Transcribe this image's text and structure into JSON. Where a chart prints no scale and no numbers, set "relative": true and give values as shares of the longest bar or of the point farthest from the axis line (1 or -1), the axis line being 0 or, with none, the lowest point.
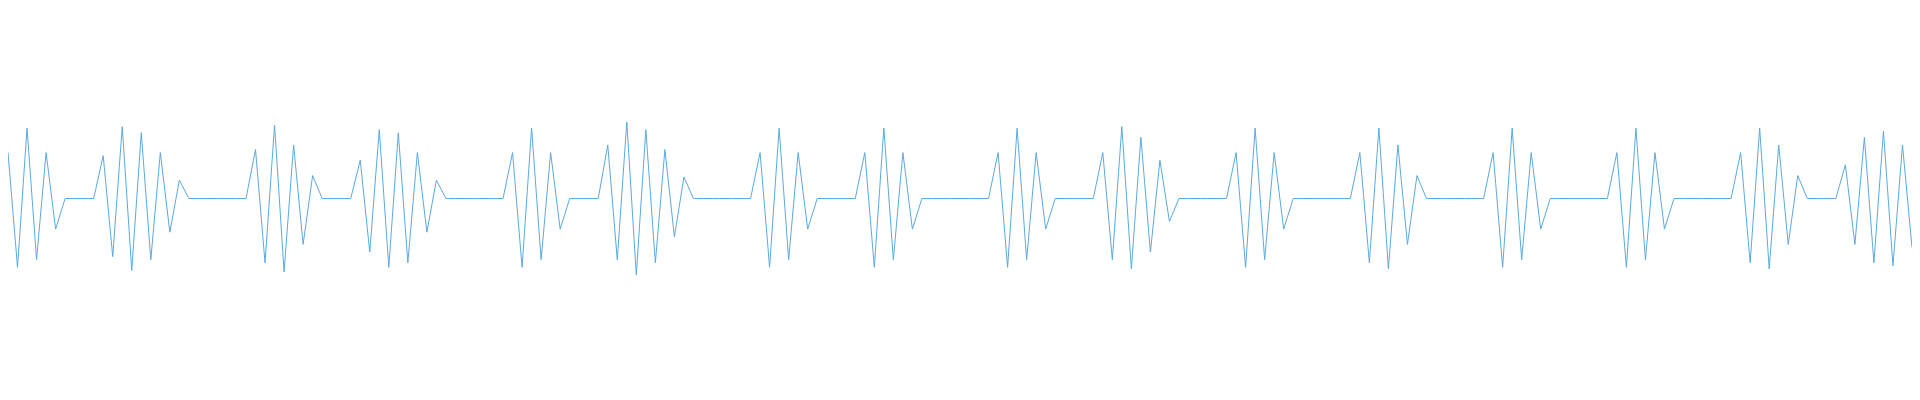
{
  "chart_data": {
    "type": "line",
    "relative": true,
    "grid": false,
    "categories": [
      null,
      null,
      null,
      null,
      null,
      null,
      null,
      null,
      null,
      null,
      null,
      null,
      null,
      null,
      null,
      null,
      null,
      null,
      null,
      null,
      null,
      null,
      null,
      null,
      null,
      null,
      null,
      null,
      null,
      null,
      null,
      null,
      null,
      null,
      null,
      null,
      null,
      null,
      null,
      null,
      null,
      null,
      null,
      null,
      null,
      null,
      null,
      null,
      null,
      null,
      null,
      null,
      null,
      null,
      null,
      null,
      null,
      null,
      null,
      null,
      null,
      null,
      null,
      null,
      null,
      null,
      null,
      null,
      null,
      null,
      null,
      null,
      null,
      null,
      null,
      null,
      null,
      null,
      null,
      null,
      null,
      null,
      null,
      null,
      null,
      null,
      null,
      null,
      null,
      null,
      null,
      null,
      null,
      null,
      null,
      null,
      null,
      null,
      null,
      null,
      null,
      null,
      null,
      null,
      null,
      null,
      null,
      null,
      null,
      null,
      null,
      null,
      null,
      null,
      null,
      null,
      null,
      null,
      null,
      null,
      null,
      null,
      null,
      null,
      null,
      null,
      null,
      null,
      null,
      null,
      null,
      null,
      null,
      null,
      null,
      null,
      null,
      null,
      null,
      null,
      null,
      null,
      null,
      null,
      null,
      null,
      null,
      null,
      null,
      null,
      null,
      null,
      null,
      null,
      null,
      null,
      null,
      null,
      null,
      null,
      null,
      null,
      null,
      null,
      null,
      null,
      null,
      null,
      null,
      null,
      null,
      null,
      null,
      null,
      null,
      null,
      null,
      null,
      null,
      null,
      null,
      null,
      null,
      null,
      null,
      null,
      null,
      null,
      null,
      null,
      null,
      null,
      null,
      null,
      null,
      null,
      null,
      null,
      null,
      null,
      null
    ],
    "series": [
      {
        "color": "#5aa9e0",
        "values": [
          0.8,
          0.05,
          0.96,
          0.1,
          0.8,
          0.3,
          0.5,
          0.5,
          0.5,
          0.5,
          0.78,
          0.12,
          0.97,
          0.03,
          0.93,
          0.1,
          0.8,
          0.28,
          0.62,
          0.5,
          0.5,
          0.5,
          0.5,
          0.5,
          0.5,
          0.5,
          0.82,
          0.08,
          0.98,
          0.02,
          0.85,
          0.2,
          0.65,
          0.5,
          0.5,
          0.5,
          0.5,
          0.75,
          0.15,
          0.95,
          0.05,
          0.93,
          0.08,
          0.8,
          0.28,
          0.62,
          0.5,
          0.5,
          0.5,
          0.5,
          0.5,
          0.5,
          0.5,
          0.8,
          0.05,
          0.96,
          0.1,
          0.8,
          0.3,
          0.5,
          0.5,
          0.5,
          0.5,
          0.85,
          0.1,
          1,
          0,
          0.95,
          0.08,
          0.82,
          0.25,
          0.64,
          0.5,
          0.5,
          0.5,
          0.5,
          0.5,
          0.5,
          0.5,
          0.8,
          0.05,
          0.96,
          0.1,
          0.8,
          0.3,
          0.5,
          0.5,
          0.5,
          0.5,
          0.5,
          0.8,
          0.05,
          0.96,
          0.1,
          0.8,
          0.3,
          0.5,
          0.5,
          0.5,
          0.5,
          0.5,
          0.5,
          0.5,
          0.5,
          0.8,
          0.05,
          0.96,
          0.1,
          0.8,
          0.3,
          0.5,
          0.5,
          0.5,
          0.5,
          0.5,
          0.8,
          0.1,
          0.97,
          0.04,
          0.9,
          0.15,
          0.75,
          0.35,
          0.5,
          0.5,
          0.5,
          0.5,
          0.5,
          0.5,
          0.8,
          0.05,
          0.96,
          0.1,
          0.8,
          0.3,
          0.5,
          0.5,
          0.5,
          0.5,
          0.5,
          0.5,
          0.5,
          0.8,
          0.08,
          0.96,
          0.04,
          0.85,
          0.2,
          0.65,
          0.5,
          0.5,
          0.5,
          0.5,
          0.5,
          0.5,
          0.5,
          0.8,
          0.05,
          0.96,
          0.1,
          0.8,
          0.3,
          0.5,
          0.5,
          0.5,
          0.5,
          0.5,
          0.5,
          0.5,
          0.8,
          0.05,
          0.96,
          0.1,
          0.8,
          0.3,
          0.5,
          0.5,
          0.5,
          0.5,
          0.5,
          0.5,
          0.5,
          0.8,
          0.08,
          0.96,
          0.04,
          0.85,
          0.2,
          0.65,
          0.5,
          0.5,
          0.5,
          0.5,
          0.72,
          0.2,
          0.9,
          0.08,
          0.94,
          0.06,
          0.85,
          0.18
        ]
      }
    ]
  }
}
